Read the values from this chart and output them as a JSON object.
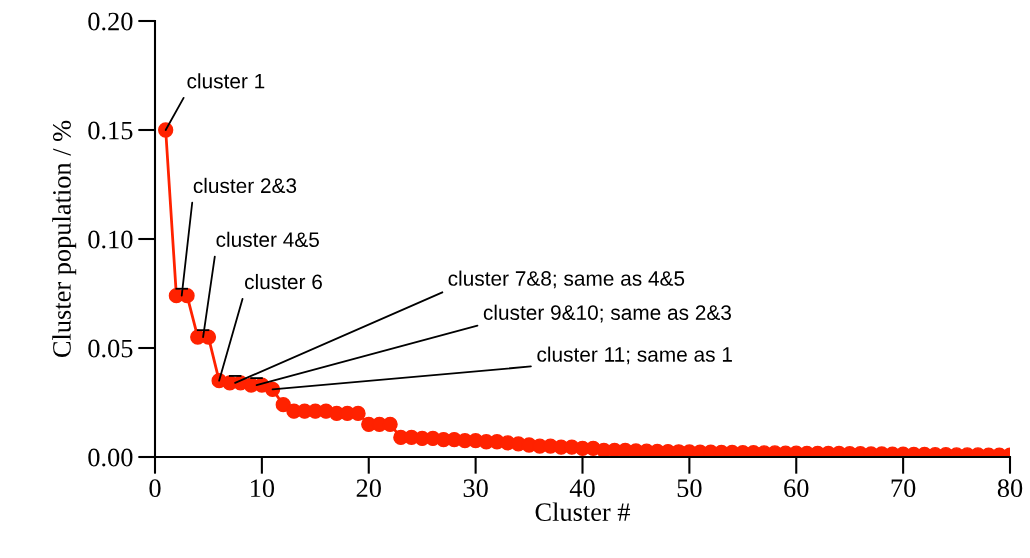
{
  "chart_data": {
    "type": "line",
    "xlabel": "Cluster #",
    "ylabel": "Cluster population / %",
    "x": [
      1,
      2,
      3,
      4,
      5,
      6,
      7,
      8,
      9,
      10,
      11,
      12,
      13,
      14,
      15,
      16,
      17,
      18,
      19,
      20,
      21,
      22,
      23,
      24,
      25,
      26,
      27,
      28,
      29,
      30,
      31,
      32,
      33,
      34,
      35,
      36,
      37,
      38,
      39,
      40,
      41,
      42,
      43,
      44,
      45,
      46,
      47,
      48,
      49,
      50,
      51,
      52,
      53,
      54,
      55,
      56,
      57,
      58,
      59,
      60,
      61,
      62,
      63,
      64,
      65,
      66,
      67,
      68,
      69,
      70,
      71,
      72,
      73,
      74,
      75,
      76,
      77,
      78,
      79,
      80
    ],
    "series": [
      {
        "color": "#ff2200",
        "values": [
          0.15,
          0.074,
          0.074,
          0.055,
          0.055,
          0.035,
          0.034,
          0.034,
          0.033,
          0.033,
          0.031,
          0.024,
          0.021,
          0.021,
          0.021,
          0.021,
          0.02,
          0.02,
          0.02,
          0.015,
          0.015,
          0.015,
          0.009,
          0.009,
          0.0085,
          0.0085,
          0.008,
          0.008,
          0.0075,
          0.0075,
          0.007,
          0.007,
          0.0065,
          0.006,
          0.0055,
          0.005,
          0.005,
          0.0045,
          0.0045,
          0.004,
          0.004,
          0.003,
          0.003,
          0.003,
          0.0028,
          0.0027,
          0.0026,
          0.0025,
          0.0024,
          0.0023,
          0.0022,
          0.0022,
          0.0021,
          0.0021,
          0.002,
          0.002,
          0.0019,
          0.0019,
          0.0018,
          0.0018,
          0.0017,
          0.0017,
          0.0016,
          0.0016,
          0.0015,
          0.0015,
          0.0014,
          0.0014,
          0.0013,
          0.0013,
          0.0012,
          0.0012,
          0.0011,
          0.0011,
          0.001,
          0.001,
          0.001,
          0.0009,
          0.0009,
          0.0008
        ]
      }
    ],
    "xlim": [
      0,
      80
    ],
    "xticks": [
      0,
      10,
      20,
      30,
      40,
      50,
      60,
      70,
      80
    ],
    "ylim": [
      0,
      0.2
    ],
    "yticks": [
      {
        "value": 0,
        "label": "0.00"
      },
      {
        "value": 0.05,
        "label": "0.05"
      },
      {
        "value": 0.1,
        "label": "0.10"
      },
      {
        "value": 0.15,
        "label": "0.15"
      },
      {
        "value": 0.2,
        "label": "0.20"
      }
    ],
    "marker": "circle",
    "line_style": "solid",
    "grid": false,
    "legend": false,
    "annotations": [
      {
        "text": "cluster 1",
        "x": 1,
        "y": 0.15
      },
      {
        "text": "cluster 2&3",
        "x": 2.5,
        "y": 0.074
      },
      {
        "text": "cluster 4&5",
        "x": 4.5,
        "y": 0.055
      },
      {
        "text": "cluster 6",
        "x": 6,
        "y": 0.035
      },
      {
        "text": "cluster 7&8; same as 4&5",
        "x": 7.5,
        "y": 0.034
      },
      {
        "text": "cluster 9&10; same as 2&3",
        "x": 9.5,
        "y": 0.033
      },
      {
        "text": "cluster 11; same as 1",
        "x": 11,
        "y": 0.031
      }
    ]
  }
}
